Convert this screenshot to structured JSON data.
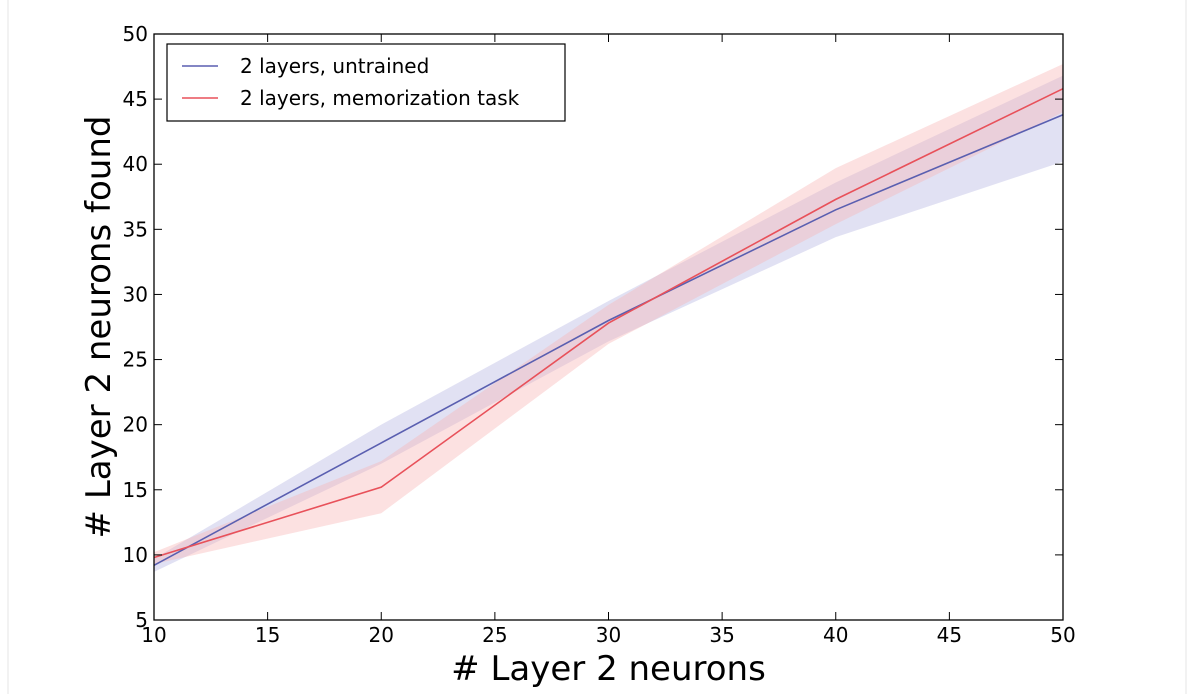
{
  "chart_data": {
    "type": "line",
    "title": "",
    "xlabel": "# Layer 2 neurons",
    "ylabel": "# Layer 2 neurons found",
    "xlim": [
      10,
      50
    ],
    "ylim": [
      5,
      50
    ],
    "xticks": [
      10,
      15,
      20,
      25,
      30,
      35,
      40,
      45,
      50
    ],
    "yticks": [
      5,
      10,
      15,
      20,
      25,
      30,
      35,
      40,
      45,
      50
    ],
    "x": [
      10,
      20,
      30,
      40,
      50
    ],
    "grid": false,
    "legend_position": "top-left",
    "series": [
      {
        "name": "2 layers, untrained",
        "color": "#5a5fb0",
        "band_color": "#b3b3e0",
        "values": [
          9.2,
          18.6,
          28.0,
          36.5,
          43.8
        ],
        "lower": [
          8.7,
          17.0,
          26.4,
          34.4,
          40.2
        ],
        "upper": [
          9.7,
          20.0,
          29.5,
          38.6,
          46.8
        ]
      },
      {
        "name": "2 layers, memorization task",
        "color": "#e8515a",
        "band_color": "#f7b3b3",
        "values": [
          9.8,
          15.2,
          27.8,
          37.3,
          45.8
        ],
        "lower": [
          9.3,
          13.2,
          26.2,
          35.4,
          44.0
        ],
        "upper": [
          10.2,
          17.2,
          29.2,
          39.7,
          47.7
        ]
      }
    ]
  }
}
